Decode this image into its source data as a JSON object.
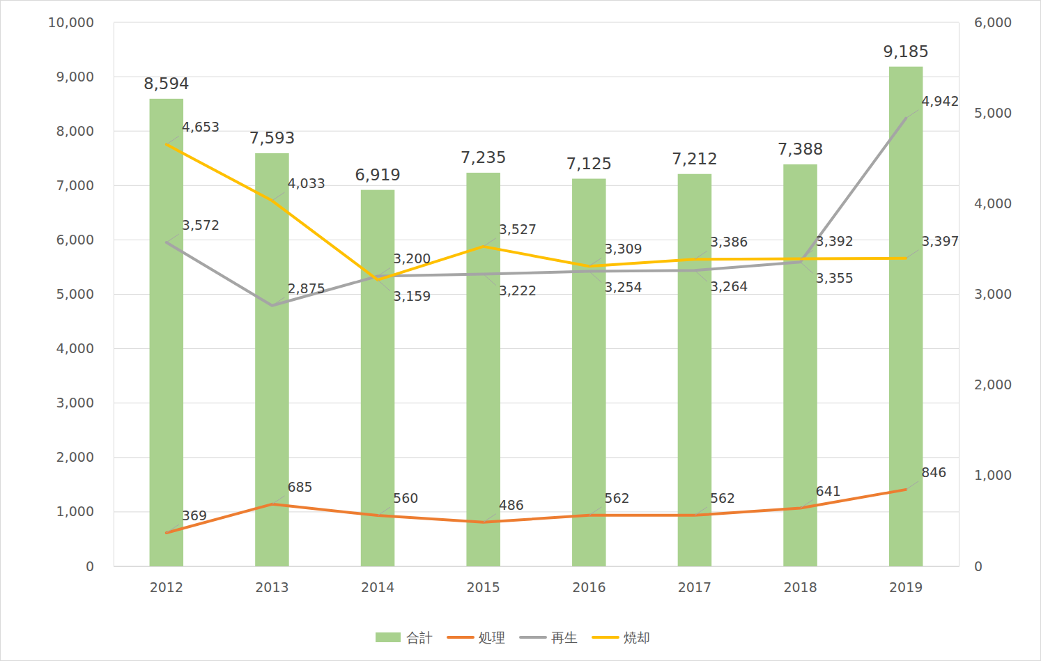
{
  "chart_data": {
    "type": "bar",
    "categories": [
      "2012",
      "2013",
      "2014",
      "2015",
      "2016",
      "2017",
      "2018",
      "2019"
    ],
    "series": [
      {
        "name": "合計",
        "type": "bar",
        "color": "#a9d18e",
        "values": [
          8594,
          7593,
          6919,
          7235,
          7125,
          7212,
          7388,
          9185
        ],
        "value_labels": [
          "8,594",
          "7,593",
          "6,919",
          "7,235",
          "7,125",
          "7,212",
          "7,388",
          "9,185"
        ]
      },
      {
        "name": "処理",
        "type": "line",
        "axis": "y2",
        "color": "#ed7d31",
        "values": [
          369,
          685,
          560,
          486,
          562,
          562,
          641,
          846
        ],
        "value_labels": [
          "369",
          "685",
          "560",
          "486",
          "562",
          "562",
          "641",
          "846"
        ]
      },
      {
        "name": "再生",
        "type": "line",
        "axis": "y2",
        "color": "#a5a5a5",
        "values": [
          3572,
          2875,
          3200,
          3222,
          3254,
          3264,
          3355,
          4942
        ],
        "value_labels": [
          "3,572",
          "2,875",
          "3,200",
          "3,222",
          "3,254",
          "3,264",
          "3,355",
          "4,942"
        ]
      },
      {
        "name": "焼却",
        "type": "line",
        "axis": "y2",
        "color": "#ffc000",
        "values": [
          4653,
          4033,
          3159,
          3527,
          3309,
          3386,
          3392,
          3397
        ],
        "value_labels": [
          "4,653",
          "4,033",
          "3,159",
          "3,527",
          "3,309",
          "3,386",
          "3,392",
          "3,397"
        ]
      }
    ],
    "ylim": [
      0,
      10000
    ],
    "yticks": [
      0,
      {
        "value": 1000,
        "label": "1,000"
      },
      {
        "value": 2000,
        "label": "2,000"
      },
      {
        "value": 3000,
        "label": "3,000"
      },
      {
        "value": 4000,
        "label": "4,000"
      },
      {
        "value": 5000,
        "label": "5,000"
      },
      {
        "value": 6000,
        "label": "6,000"
      },
      {
        "value": 7000,
        "label": "7,000"
      },
      {
        "value": 8000,
        "label": "8,000"
      },
      {
        "value": 9000,
        "label": "9,000"
      },
      {
        "value": 10000,
        "label": "10,000"
      }
    ],
    "y2lim": [
      0,
      6000
    ],
    "y2ticks": [
      0,
      {
        "value": 1000,
        "label": "1,000"
      },
      {
        "value": 2000,
        "label": "2,000"
      },
      {
        "value": 3000,
        "label": "3,000"
      },
      {
        "value": 4000,
        "label": "4,000"
      },
      {
        "value": 5000,
        "label": "5,000"
      },
      {
        "value": 6000,
        "label": "6,000"
      }
    ],
    "grid": true,
    "legend": "bottom",
    "data_labels": true
  }
}
